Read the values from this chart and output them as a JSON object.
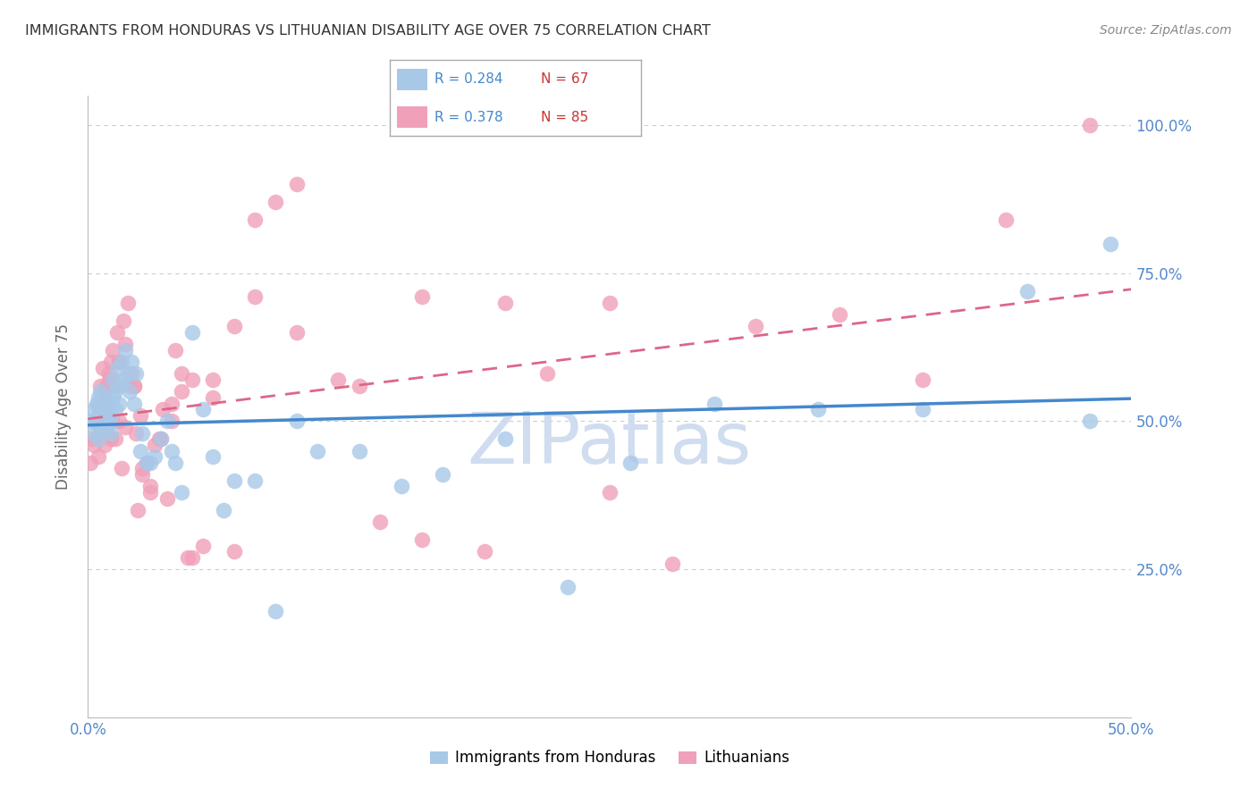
{
  "title": "IMMIGRANTS FROM HONDURAS VS LITHUANIAN DISABILITY AGE OVER 75 CORRELATION CHART",
  "source": "Source: ZipAtlas.com",
  "ylabel": "Disability Age Over 75",
  "legend_r1": "R = 0.284",
  "legend_n1": "N = 67",
  "legend_r2": "R = 0.378",
  "legend_n2": "N = 85",
  "legend_label1": "Immigrants from Honduras",
  "legend_label2": "Lithuanians",
  "blue_color": "#a8c8e8",
  "pink_color": "#f0a0b8",
  "trend_blue": "#4488cc",
  "trend_pink": "#dd6688",
  "axis_label_color": "#5588cc",
  "grid_color": "#cccccc",
  "watermark_color": "#c8d8ee",
  "xlim": [
    0.0,
    0.5
  ],
  "ylim": [
    0.0,
    1.05
  ],
  "xtick_positions": [
    0.0,
    0.5
  ],
  "xtick_labels": [
    "0.0%",
    "50.0%"
  ],
  "ytick_positions": [
    0.25,
    0.5,
    0.75,
    1.0
  ],
  "ytick_labels": [
    "25.0%",
    "50.0%",
    "75.0%",
    "100.0%"
  ],
  "blue_scatter_x": [
    0.002,
    0.003,
    0.003,
    0.004,
    0.004,
    0.005,
    0.005,
    0.005,
    0.006,
    0.006,
    0.006,
    0.007,
    0.007,
    0.008,
    0.008,
    0.009,
    0.009,
    0.01,
    0.01,
    0.011,
    0.011,
    0.012,
    0.012,
    0.013,
    0.013,
    0.014,
    0.015,
    0.015,
    0.016,
    0.017,
    0.018,
    0.019,
    0.02,
    0.021,
    0.022,
    0.023,
    0.025,
    0.026,
    0.028,
    0.03,
    0.032,
    0.035,
    0.038,
    0.04,
    0.042,
    0.045,
    0.05,
    0.055,
    0.06,
    0.065,
    0.07,
    0.08,
    0.09,
    0.1,
    0.11,
    0.13,
    0.15,
    0.17,
    0.2,
    0.23,
    0.26,
    0.3,
    0.35,
    0.4,
    0.45,
    0.48,
    0.49
  ],
  "blue_scatter_y": [
    0.5,
    0.48,
    0.52,
    0.5,
    0.53,
    0.47,
    0.51,
    0.54,
    0.49,
    0.52,
    0.55,
    0.5,
    0.53,
    0.51,
    0.54,
    0.49,
    0.52,
    0.5,
    0.53,
    0.48,
    0.51,
    0.54,
    0.57,
    0.52,
    0.55,
    0.59,
    0.53,
    0.56,
    0.6,
    0.57,
    0.62,
    0.58,
    0.55,
    0.6,
    0.53,
    0.58,
    0.45,
    0.48,
    0.43,
    0.43,
    0.44,
    0.47,
    0.5,
    0.45,
    0.43,
    0.38,
    0.65,
    0.52,
    0.44,
    0.35,
    0.4,
    0.4,
    0.18,
    0.5,
    0.45,
    0.45,
    0.39,
    0.41,
    0.47,
    0.22,
    0.43,
    0.53,
    0.52,
    0.52,
    0.72,
    0.5,
    0.8
  ],
  "pink_scatter_x": [
    0.001,
    0.002,
    0.003,
    0.004,
    0.005,
    0.005,
    0.006,
    0.006,
    0.007,
    0.007,
    0.008,
    0.008,
    0.009,
    0.009,
    0.01,
    0.01,
    0.011,
    0.011,
    0.012,
    0.012,
    0.013,
    0.013,
    0.014,
    0.015,
    0.015,
    0.016,
    0.017,
    0.018,
    0.019,
    0.02,
    0.021,
    0.022,
    0.023,
    0.024,
    0.025,
    0.026,
    0.028,
    0.03,
    0.032,
    0.034,
    0.036,
    0.038,
    0.04,
    0.042,
    0.045,
    0.048,
    0.05,
    0.055,
    0.06,
    0.07,
    0.08,
    0.09,
    0.1,
    0.12,
    0.14,
    0.16,
    0.19,
    0.22,
    0.25,
    0.28,
    0.32,
    0.36,
    0.4,
    0.44,
    0.48,
    0.008,
    0.01,
    0.012,
    0.015,
    0.018,
    0.022,
    0.026,
    0.03,
    0.035,
    0.04,
    0.045,
    0.05,
    0.06,
    0.07,
    0.08,
    0.1,
    0.13,
    0.16,
    0.2,
    0.25
  ],
  "pink_scatter_y": [
    0.43,
    0.47,
    0.46,
    0.5,
    0.44,
    0.53,
    0.48,
    0.56,
    0.51,
    0.59,
    0.46,
    0.53,
    0.49,
    0.56,
    0.5,
    0.57,
    0.47,
    0.6,
    0.5,
    0.62,
    0.47,
    0.56,
    0.65,
    0.5,
    0.6,
    0.42,
    0.67,
    0.49,
    0.7,
    0.56,
    0.58,
    0.56,
    0.48,
    0.35,
    0.51,
    0.41,
    0.43,
    0.38,
    0.46,
    0.47,
    0.52,
    0.37,
    0.53,
    0.62,
    0.58,
    0.27,
    0.27,
    0.29,
    0.57,
    0.28,
    0.84,
    0.87,
    0.9,
    0.57,
    0.33,
    0.3,
    0.28,
    0.58,
    0.38,
    0.26,
    0.66,
    0.68,
    0.57,
    0.84,
    1.0,
    0.55,
    0.58,
    0.57,
    0.6,
    0.63,
    0.56,
    0.42,
    0.39,
    0.47,
    0.5,
    0.55,
    0.57,
    0.54,
    0.66,
    0.71,
    0.65,
    0.56,
    0.71,
    0.7,
    0.7
  ]
}
